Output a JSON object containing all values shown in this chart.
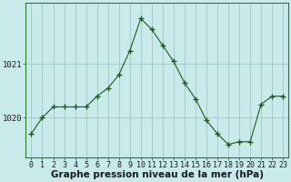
{
  "x": [
    0,
    1,
    2,
    3,
    4,
    5,
    6,
    7,
    8,
    9,
    10,
    11,
    12,
    13,
    14,
    15,
    16,
    17,
    18,
    19,
    20,
    21,
    22,
    23
  ],
  "y": [
    1019.7,
    1020.0,
    1020.2,
    1020.2,
    1020.2,
    1020.2,
    1020.4,
    1020.55,
    1020.8,
    1021.25,
    1021.85,
    1021.65,
    1021.35,
    1021.05,
    1020.65,
    1020.35,
    1019.95,
    1019.7,
    1019.5,
    1019.55,
    1019.55,
    1020.25,
    1020.4,
    1020.4
  ],
  "line_color": "#1a5c1a",
  "marker": "+",
  "marker_size": 4,
  "marker_linewidth": 1.0,
  "line_width": 0.8,
  "background_color": "#c8eaea",
  "grid_color": "#a0c8c8",
  "xlabel": "Graphe pression niveau de la mer (hPa)",
  "xlabel_fontsize": 7.5,
  "ytick_labels": [
    "1020",
    "1021"
  ],
  "ytick_values": [
    1020.0,
    1021.0
  ],
  "ylim": [
    1019.25,
    1022.15
  ],
  "xlim": [
    -0.5,
    23.5
  ],
  "tick_fontsize": 6.0,
  "spine_color": "#2d7a2d",
  "fig_width": 3.2,
  "fig_height": 2.0,
  "dpi": 100
}
